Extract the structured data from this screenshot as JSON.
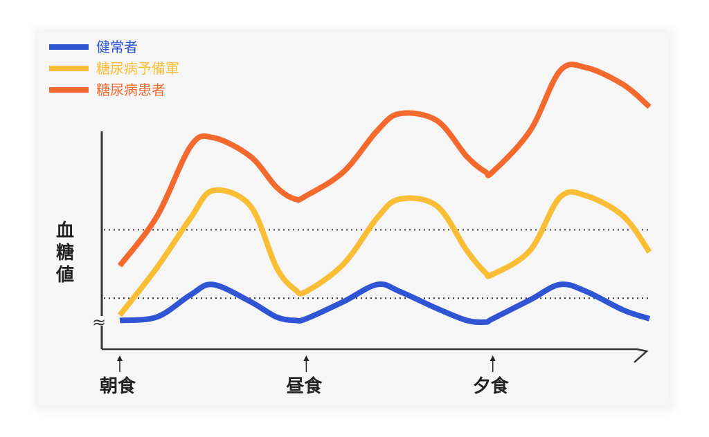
{
  "chart_data": {
    "type": "line",
    "title": "",
    "xlabel": "",
    "ylabel": "血糖値",
    "meal_markers": [
      {
        "label": "朝食",
        "time": 0
      },
      {
        "label": "昼食",
        "time": 5
      },
      {
        "label": "夕食",
        "time": 10
      }
    ],
    "x": [
      0,
      1,
      1.9,
      2.5,
      3.5,
      4.2,
      4.7,
      5.0,
      6.0,
      6.9,
      7.5,
      8.5,
      9.3,
      9.8,
      10.0,
      11.0,
      11.8,
      12.5,
      13.5,
      14.2
    ],
    "series": [
      {
        "name": "健常者",
        "color": "#2f55d4",
        "values": [
          7,
          9,
          22,
          28,
          18,
          9,
          7,
          8,
          18,
          28,
          24,
          14,
          7,
          6,
          8,
          19,
          28,
          24,
          13,
          8
        ]
      },
      {
        "name": "糖尿病予備軍",
        "color": "#f9be35",
        "values": [
          10,
          38,
          67,
          83,
          74,
          38,
          25,
          24,
          40,
          67,
          78,
          74,
          48,
          35,
          34,
          48,
          79,
          80,
          68,
          47
        ]
      },
      {
        "name": "糖尿病患者",
        "color": "#f46a2e",
        "values": [
          39,
          68,
          109,
          114,
          103,
          85,
          78,
          80,
          94,
          118,
          128,
          124,
          103,
          94,
          94,
          118,
          153,
          155,
          145,
          132
        ]
      }
    ],
    "reference_lines": [
      {
        "value": 60,
        "style": "dotted"
      },
      {
        "value": 20,
        "style": "dotted"
      }
    ],
    "axis_break": "≈",
    "ylim": [
      -5,
      165
    ],
    "legend_position": "top-left"
  }
}
